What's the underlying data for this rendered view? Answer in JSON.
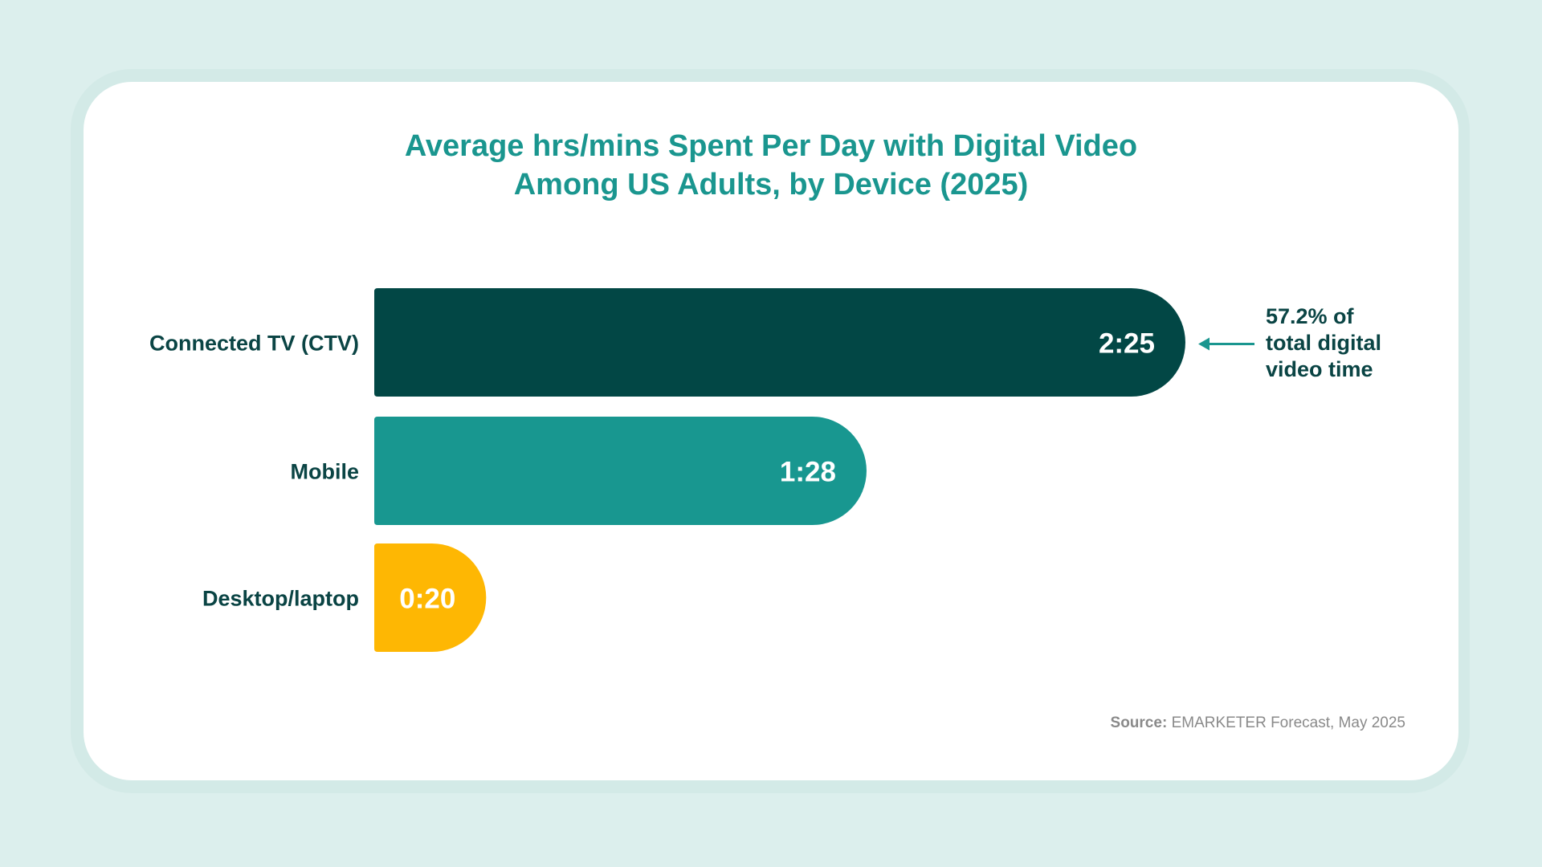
{
  "chart_data": {
    "type": "bar",
    "orientation": "horizontal",
    "title_lines": [
      "Average hrs/mins Spent Per Day with Digital Video",
      "Among US Adults, by Device (2025)"
    ],
    "categories": [
      "Connected TV (CTV)",
      "Mobile",
      "Desktop/laptop"
    ],
    "values_minutes": [
      145,
      88,
      20
    ],
    "value_labels": [
      "2:25",
      "1:28",
      "0:20"
    ],
    "colors": [
      "#024745",
      "#189790",
      "#feb703"
    ],
    "xlim_minutes": [
      0,
      145
    ],
    "grid": false,
    "legend": "none",
    "annotation": {
      "target_category": "Connected TV (CTV)",
      "lines": [
        "57.2% of",
        "total digital",
        "video time"
      ],
      "arrow_color": "#1a968f"
    },
    "source": {
      "label": "Source:",
      "text": "EMARKETER Forecast, May 2025"
    }
  }
}
